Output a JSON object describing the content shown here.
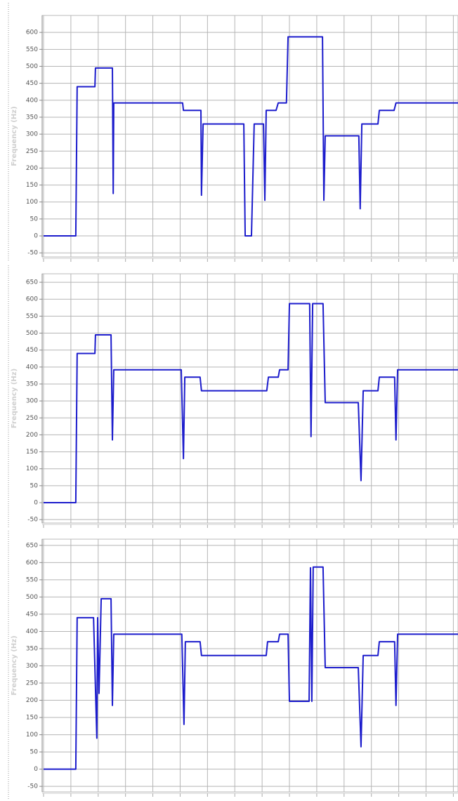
{
  "chart_data": [
    {
      "type": "line",
      "ylabel": "Frequency (Hz)",
      "color": "#1c1ccc",
      "grid": true,
      "xlim": [
        0,
        15.17
      ],
      "xticks": [
        0,
        1,
        2,
        3,
        4,
        5,
        6,
        7,
        8,
        9,
        10,
        11,
        12,
        13,
        14,
        15
      ],
      "ylim": [
        -62,
        650
      ],
      "yticks": [
        -50,
        0,
        50,
        100,
        150,
        200,
        250,
        300,
        350,
        400,
        450,
        500,
        550,
        600
      ],
      "x": [
        0,
        1.18,
        1.23,
        1.88,
        1.9,
        2.52,
        2.55,
        2.57,
        5.09,
        5.12,
        5.76,
        5.78,
        5.84,
        7.33,
        7.38,
        7.61,
        7.71,
        8.05,
        8.1,
        8.15,
        8.51,
        8.59,
        8.89,
        8.95,
        10.21,
        10.26,
        10.31,
        11.54,
        11.59,
        11.65,
        12.24,
        12.29,
        12.83,
        12.9,
        15.17
      ],
      "values": [
        0,
        0,
        440,
        440,
        495,
        495,
        125,
        392,
        392,
        370,
        370,
        120,
        330,
        330,
        0,
        0,
        330,
        330,
        105,
        370,
        370,
        392,
        392,
        587,
        587,
        105,
        295,
        295,
        80,
        330,
        330,
        370,
        370,
        392,
        392
      ]
    },
    {
      "type": "line",
      "ylabel": "Frequency (Hz)",
      "color": "#1c1ccc",
      "grid": true,
      "xlim": [
        0,
        15.17
      ],
      "xticks": [
        0,
        1,
        2,
        3,
        4,
        5,
        6,
        7,
        8,
        9,
        10,
        11,
        12,
        13,
        14,
        15
      ],
      "ylim": [
        -60,
        675
      ],
      "yticks": [
        -50,
        0,
        50,
        100,
        150,
        200,
        250,
        300,
        350,
        400,
        450,
        500,
        550,
        600,
        650
      ],
      "x": [
        0,
        1.18,
        1.23,
        1.88,
        1.9,
        2.47,
        2.52,
        2.57,
        5.04,
        5.12,
        5.17,
        5.73,
        5.78,
        8.17,
        8.23,
        8.59,
        8.64,
        8.95,
        9.0,
        9.74,
        9.79,
        9.85,
        10.23,
        10.31,
        11.52,
        11.62,
        11.7,
        12.24,
        12.29,
        12.85,
        12.9,
        12.96,
        15.17
      ],
      "values": [
        0,
        0,
        440,
        440,
        495,
        495,
        185,
        392,
        392,
        130,
        370,
        370,
        330,
        330,
        370,
        370,
        392,
        392,
        587,
        587,
        195,
        587,
        587,
        295,
        295,
        65,
        330,
        330,
        370,
        370,
        185,
        392,
        392
      ]
    },
    {
      "type": "line",
      "ylabel": "Frequency (Hz)",
      "color": "#1c1ccc",
      "grid": true,
      "xlim": [
        0,
        15.17
      ],
      "xticks": [
        0,
        1,
        2,
        3,
        4,
        5,
        6,
        7,
        8,
        9,
        10,
        11,
        12,
        13,
        14,
        15
      ],
      "ylim": [
        -66,
        668
      ],
      "yticks": [
        -50,
        0,
        50,
        100,
        150,
        200,
        250,
        300,
        350,
        400,
        450,
        500,
        550,
        600,
        650
      ],
      "x": [
        0,
        1.18,
        1.23,
        1.83,
        1.95,
        1.98,
        2.03,
        2.11,
        2.47,
        2.52,
        2.57,
        5.06,
        5.14,
        5.19,
        5.73,
        5.78,
        8.15,
        8.2,
        8.59,
        8.64,
        8.95,
        9.0,
        9.72,
        9.77,
        9.82,
        9.87,
        10.23,
        10.31,
        11.52,
        11.62,
        11.7,
        12.24,
        12.29,
        12.85,
        12.9,
        12.96,
        15.17
      ],
      "values": [
        0,
        0,
        440,
        440,
        90,
        440,
        220,
        495,
        495,
        185,
        392,
        392,
        130,
        370,
        370,
        330,
        330,
        370,
        370,
        392,
        392,
        197,
        197,
        585,
        197,
        587,
        587,
        295,
        295,
        65,
        330,
        330,
        370,
        370,
        185,
        392,
        392
      ]
    }
  ]
}
